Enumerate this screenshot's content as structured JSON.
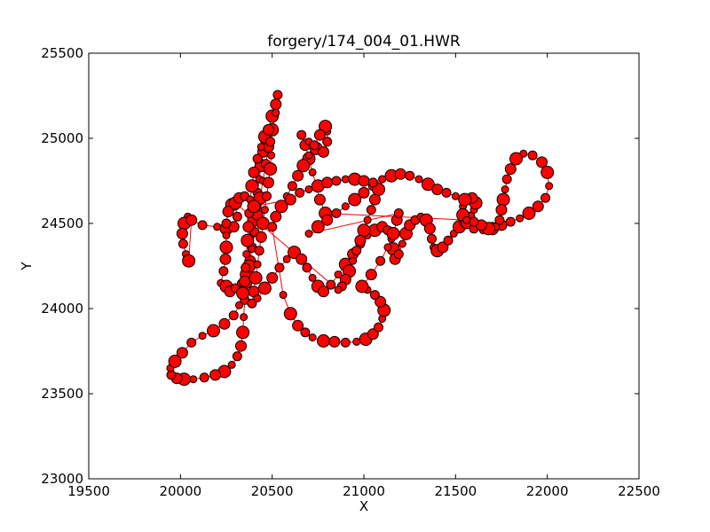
{
  "chart_data": {
    "type": "scatter",
    "title": "forgery/174_004_01.HWR",
    "xlabel": "X",
    "ylabel": "Y",
    "xlim": [
      19500,
      22500
    ],
    "ylim": [
      23000,
      25500
    ],
    "xticks": [
      19500,
      20000,
      20500,
      21000,
      21500,
      22000,
      22500
    ],
    "yticks": [
      23000,
      23500,
      24000,
      24500,
      25000,
      25500
    ],
    "grid": false,
    "legend": "none",
    "marker_color": "#ff0000",
    "marker_edge_color": "#000000",
    "line_color": "#ff0000",
    "series": [
      {
        "values": [
          [
            20040,
            24540
          ],
          [
            20020,
            24500
          ],
          [
            20010,
            24440
          ],
          [
            20015,
            24380
          ],
          [
            20030,
            24320
          ],
          [
            20045,
            24280
          ],
          [
            20060,
            24520
          ],
          [
            20120,
            24490
          ],
          [
            20200,
            24480
          ],
          [
            20250,
            24470
          ],
          [
            20290,
            24480
          ],
          [
            20310,
            24540
          ],
          [
            20300,
            24600
          ],
          [
            20280,
            24610
          ],
          [
            20260,
            24570
          ],
          [
            20250,
            24500
          ],
          [
            20250,
            24430
          ],
          [
            20250,
            24360
          ],
          [
            20245,
            24290
          ],
          [
            20235,
            24220
          ],
          [
            20220,
            24150
          ],
          [
            20250,
            24130
          ],
          [
            20270,
            24100
          ],
          [
            20300,
            24120
          ],
          [
            20330,
            24150
          ],
          [
            20360,
            24200
          ],
          [
            20380,
            24280
          ],
          [
            20390,
            24360
          ],
          [
            20395,
            24440
          ],
          [
            20400,
            24520
          ],
          [
            20410,
            24600
          ],
          [
            20420,
            24680
          ],
          [
            20430,
            24760
          ],
          [
            20440,
            24840
          ],
          [
            20450,
            24920
          ],
          [
            20460,
            24990
          ],
          [
            20480,
            25060
          ],
          [
            20500,
            25130
          ],
          [
            20520,
            25200
          ],
          [
            20530,
            25255
          ],
          [
            20520,
            25150
          ],
          [
            20500,
            25050
          ],
          [
            20480,
            24950
          ],
          [
            20465,
            24850
          ],
          [
            20450,
            24750
          ],
          [
            20435,
            24650
          ],
          [
            20420,
            24550
          ],
          [
            20405,
            24450
          ],
          [
            20390,
            24350
          ],
          [
            20375,
            24250
          ],
          [
            20360,
            24150
          ],
          [
            20350,
            24050
          ],
          [
            20345,
            23950
          ],
          [
            20340,
            23860
          ],
          [
            20330,
            23780
          ],
          [
            20310,
            23720
          ],
          [
            20280,
            23670
          ],
          [
            20240,
            23630
          ],
          [
            20190,
            23610
          ],
          [
            20130,
            23595
          ],
          [
            20070,
            23585
          ],
          [
            20020,
            23585
          ],
          [
            19980,
            23590
          ],
          [
            19950,
            23610
          ],
          [
            19945,
            23650
          ],
          [
            19970,
            23690
          ],
          [
            20010,
            23740
          ],
          [
            20060,
            23800
          ],
          [
            20120,
            23840
          ],
          [
            20180,
            23870
          ],
          [
            20240,
            23910
          ],
          [
            20290,
            23960
          ],
          [
            20320,
            24020
          ],
          [
            20340,
            24090
          ],
          [
            20350,
            24160
          ],
          [
            20355,
            24240
          ],
          [
            20360,
            24320
          ],
          [
            20365,
            24400
          ],
          [
            20370,
            24480
          ],
          [
            20375,
            24560
          ],
          [
            20380,
            24640
          ],
          [
            20390,
            24720
          ],
          [
            20400,
            24800
          ],
          [
            20420,
            24880
          ],
          [
            20440,
            24950
          ],
          [
            20460,
            25010
          ],
          [
            20480,
            25050
          ],
          [
            20490,
            24980
          ],
          [
            20495,
            24900
          ],
          [
            20490,
            24820
          ],
          [
            20480,
            24740
          ],
          [
            20470,
            24660
          ],
          [
            20460,
            24580
          ],
          [
            20450,
            24500
          ],
          [
            20440,
            24420
          ],
          [
            20430,
            24340
          ],
          [
            20420,
            24260
          ],
          [
            20410,
            24180
          ],
          [
            20400,
            24100
          ],
          [
            20390,
            24030
          ],
          [
            20420,
            24060
          ],
          [
            20460,
            24120
          ],
          [
            20500,
            24180
          ],
          [
            20540,
            24240
          ],
          [
            20580,
            24290
          ],
          [
            20620,
            24330
          ],
          [
            20660,
            24290
          ],
          [
            20690,
            24240
          ],
          [
            20720,
            24180
          ],
          [
            20750,
            24130
          ],
          [
            20780,
            24100
          ],
          [
            20820,
            24140
          ],
          [
            20860,
            24200
          ],
          [
            20900,
            24260
          ],
          [
            20940,
            24320
          ],
          [
            20980,
            24380
          ],
          [
            21020,
            24430
          ],
          [
            21060,
            24460
          ],
          [
            21100,
            24480
          ],
          [
            21130,
            24460
          ],
          [
            21150,
            24410
          ],
          [
            21160,
            24350
          ],
          [
            21170,
            24290
          ],
          [
            21190,
            24320
          ],
          [
            21210,
            24380
          ],
          [
            21230,
            24440
          ],
          [
            21250,
            24490
          ],
          [
            21280,
            24520
          ],
          [
            21310,
            24540
          ],
          [
            21340,
            24520
          ],
          [
            21360,
            24470
          ],
          [
            21370,
            24410
          ],
          [
            21380,
            24360
          ],
          [
            21400,
            24340
          ],
          [
            21430,
            24360
          ],
          [
            21460,
            24400
          ],
          [
            21490,
            24440
          ],
          [
            21520,
            24480
          ],
          [
            21550,
            24510
          ],
          [
            21580,
            24540
          ],
          [
            21600,
            24580
          ],
          [
            21610,
            24620
          ],
          [
            21590,
            24650
          ],
          [
            21560,
            24640
          ],
          [
            21540,
            24600
          ],
          [
            21540,
            24550
          ],
          [
            21560,
            24500
          ],
          [
            21600,
            24470
          ],
          [
            21650,
            24460
          ],
          [
            21700,
            24470
          ],
          [
            21750,
            24490
          ],
          [
            21800,
            24510
          ],
          [
            21850,
            24530
          ],
          [
            21900,
            24560
          ],
          [
            21950,
            24600
          ],
          [
            21990,
            24650
          ],
          [
            22010,
            24720
          ],
          [
            22000,
            24800
          ],
          [
            21970,
            24860
          ],
          [
            21920,
            24900
          ],
          [
            21870,
            24910
          ],
          [
            21830,
            24880
          ],
          [
            21800,
            24820
          ],
          [
            21780,
            24760
          ],
          [
            21770,
            24700
          ],
          [
            21760,
            24640
          ],
          [
            21750,
            24580
          ],
          [
            21740,
            24520
          ],
          [
            21720,
            24480
          ],
          [
            21680,
            24470
          ],
          [
            21640,
            24490
          ],
          [
            21600,
            24510
          ],
          [
            21560,
            24520
          ],
          [
            20790,
            24560
          ],
          [
            20760,
            24640
          ],
          [
            20740,
            24720
          ],
          [
            20720,
            24800
          ],
          [
            20700,
            24880
          ],
          [
            20680,
            24960
          ],
          [
            20660,
            25020
          ],
          [
            20700,
            24980
          ],
          [
            20740,
            24940
          ],
          [
            20780,
            24920
          ],
          [
            20800,
            24980
          ],
          [
            20800,
            25040
          ],
          [
            20790,
            25070
          ],
          [
            20760,
            25020
          ],
          [
            20730,
            24960
          ],
          [
            20700,
            24900
          ],
          [
            20670,
            24840
          ],
          [
            20640,
            24780
          ],
          [
            20610,
            24720
          ],
          [
            20580,
            24660
          ],
          [
            20550,
            24600
          ],
          [
            20520,
            24540
          ],
          [
            20500,
            24480
          ],
          [
            20560,
            24080
          ],
          [
            20600,
            23970
          ],
          [
            20640,
            23900
          ],
          [
            20680,
            23860
          ],
          [
            20720,
            23830
          ],
          [
            20780,
            23810
          ],
          [
            20840,
            23805
          ],
          [
            20900,
            23800
          ],
          [
            20960,
            23805
          ],
          [
            21010,
            23820
          ],
          [
            21050,
            23850
          ],
          [
            21080,
            23890
          ],
          [
            21100,
            23940
          ],
          [
            21110,
            23990
          ],
          [
            21090,
            24040
          ],
          [
            21060,
            24080
          ],
          [
            21020,
            24110
          ],
          [
            20990,
            24130
          ],
          [
            21040,
            24200
          ],
          [
            21090,
            24280
          ],
          [
            21130,
            24360
          ],
          [
            21160,
            24440
          ],
          [
            21180,
            24520
          ],
          [
            21190,
            24560
          ],
          [
            20700,
            24440
          ],
          [
            20750,
            24480
          ],
          [
            20800,
            24520
          ],
          [
            20850,
            24560
          ],
          [
            20900,
            24600
          ],
          [
            20950,
            24640
          ],
          [
            21000,
            24680
          ],
          [
            21050,
            24720
          ],
          [
            21100,
            24760
          ],
          [
            21080,
            24700
          ],
          [
            21060,
            24640
          ],
          [
            21040,
            24580
          ],
          [
            21020,
            24520
          ],
          [
            21000,
            24460
          ],
          [
            20980,
            24400
          ],
          [
            20960,
            24340
          ],
          [
            20940,
            24280
          ],
          [
            20920,
            24220
          ],
          [
            20900,
            24170
          ],
          [
            20880,
            24130
          ],
          [
            20860,
            24110
          ],
          [
            20300,
            24620
          ],
          [
            20320,
            24650
          ],
          [
            20350,
            24660
          ],
          [
            20380,
            24640
          ],
          [
            20400,
            24600
          ],
          [
            20600,
            24640
          ],
          [
            20650,
            24680
          ],
          [
            20700,
            24700
          ],
          [
            20750,
            24720
          ],
          [
            20800,
            24740
          ],
          [
            20850,
            24750
          ],
          [
            20900,
            24760
          ],
          [
            20950,
            24760
          ],
          [
            21000,
            24750
          ],
          [
            21050,
            24740
          ],
          [
            21100,
            24760
          ],
          [
            21150,
            24780
          ],
          [
            21200,
            24790
          ],
          [
            21250,
            24780
          ],
          [
            21300,
            24760
          ],
          [
            21350,
            24730
          ],
          [
            21400,
            24700
          ],
          [
            21450,
            24680
          ],
          [
            21500,
            24660
          ],
          [
            21550,
            24640
          ]
        ]
      }
    ]
  }
}
